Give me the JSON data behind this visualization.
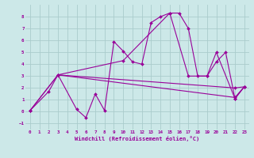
{
  "title": "",
  "xlabel": "Windchill (Refroidissement éolien,°C)",
  "background_color": "#cce8e8",
  "grid_color": "#aacccc",
  "line_color": "#990099",
  "xlim": [
    -0.5,
    23.5
  ],
  "ylim": [
    -1.5,
    9.0
  ],
  "xticks": [
    0,
    1,
    2,
    3,
    4,
    5,
    6,
    7,
    8,
    9,
    10,
    11,
    12,
    13,
    14,
    15,
    16,
    17,
    18,
    19,
    20,
    21,
    22,
    23
  ],
  "yticks": [
    -1,
    0,
    1,
    2,
    3,
    4,
    5,
    6,
    7,
    8
  ],
  "series": [
    {
      "x": [
        0,
        2,
        3,
        5,
        6,
        7,
        8,
        9,
        10,
        11,
        12,
        13,
        14,
        15,
        16,
        17,
        18,
        19,
        20,
        21,
        22,
        23
      ],
      "y": [
        0.1,
        1.7,
        3.1,
        0.2,
        -0.5,
        1.5,
        0.1,
        5.9,
        5.1,
        4.2,
        4.0,
        7.5,
        8.0,
        8.3,
        8.3,
        7.0,
        3.0,
        3.0,
        4.2,
        5.0,
        1.1,
        2.1
      ]
    },
    {
      "x": [
        0,
        3,
        22,
        23
      ],
      "y": [
        0.1,
        3.1,
        1.2,
        2.1
      ]
    },
    {
      "x": [
        0,
        3,
        22,
        23
      ],
      "y": [
        0.1,
        3.1,
        2.0,
        2.1
      ]
    },
    {
      "x": [
        3,
        10,
        15,
        17,
        19,
        20,
        22,
        23
      ],
      "y": [
        3.1,
        4.3,
        8.3,
        3.0,
        3.0,
        5.0,
        1.1,
        2.1
      ]
    }
  ],
  "marker": "D",
  "markersize": 2.0,
  "linewidth": 0.8
}
